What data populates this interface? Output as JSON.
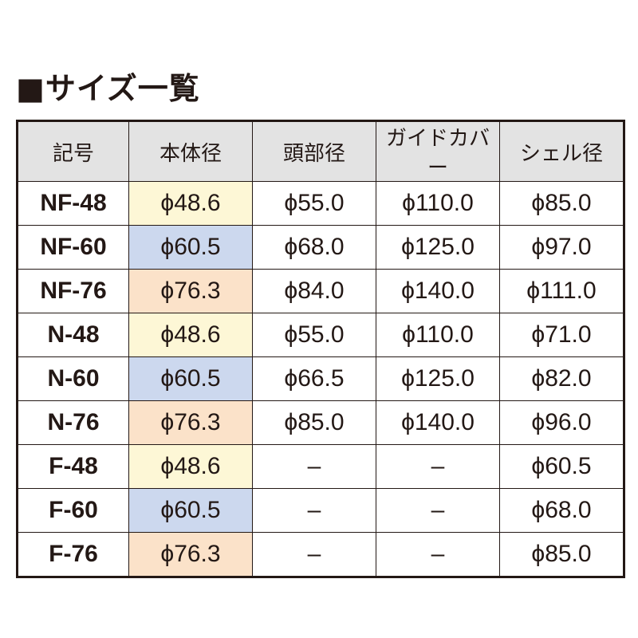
{
  "header": {
    "title": "■サイズ一覧"
  },
  "table": {
    "columns": [
      "記号",
      "本体径",
      "頭部径",
      "ガイドカバー",
      "シェル径"
    ],
    "rows": [
      [
        "NF-48",
        "ϕ48.6",
        "ϕ55.0",
        "ϕ110.0",
        "ϕ85.0"
      ],
      [
        "NF-60",
        "ϕ60.5",
        "ϕ68.0",
        "ϕ125.0",
        "ϕ97.0"
      ],
      [
        "NF-76",
        "ϕ76.3",
        "ϕ84.0",
        "ϕ140.0",
        "ϕ111.0"
      ],
      [
        "N-48",
        "ϕ48.6",
        "ϕ55.0",
        "ϕ110.0",
        "ϕ71.0"
      ],
      [
        "N-60",
        "ϕ60.5",
        "ϕ66.5",
        "ϕ125.0",
        "ϕ82.0"
      ],
      [
        "N-76",
        "ϕ76.3",
        "ϕ85.0",
        "ϕ140.0",
        "ϕ96.0"
      ],
      [
        "F-48",
        "ϕ48.6",
        "–",
        "–",
        "ϕ60.5"
      ],
      [
        "F-60",
        "ϕ60.5",
        "–",
        "–",
        "ϕ68.0"
      ],
      [
        "F-76",
        "ϕ76.3",
        "–",
        "–",
        "ϕ85.0"
      ]
    ]
  }
}
